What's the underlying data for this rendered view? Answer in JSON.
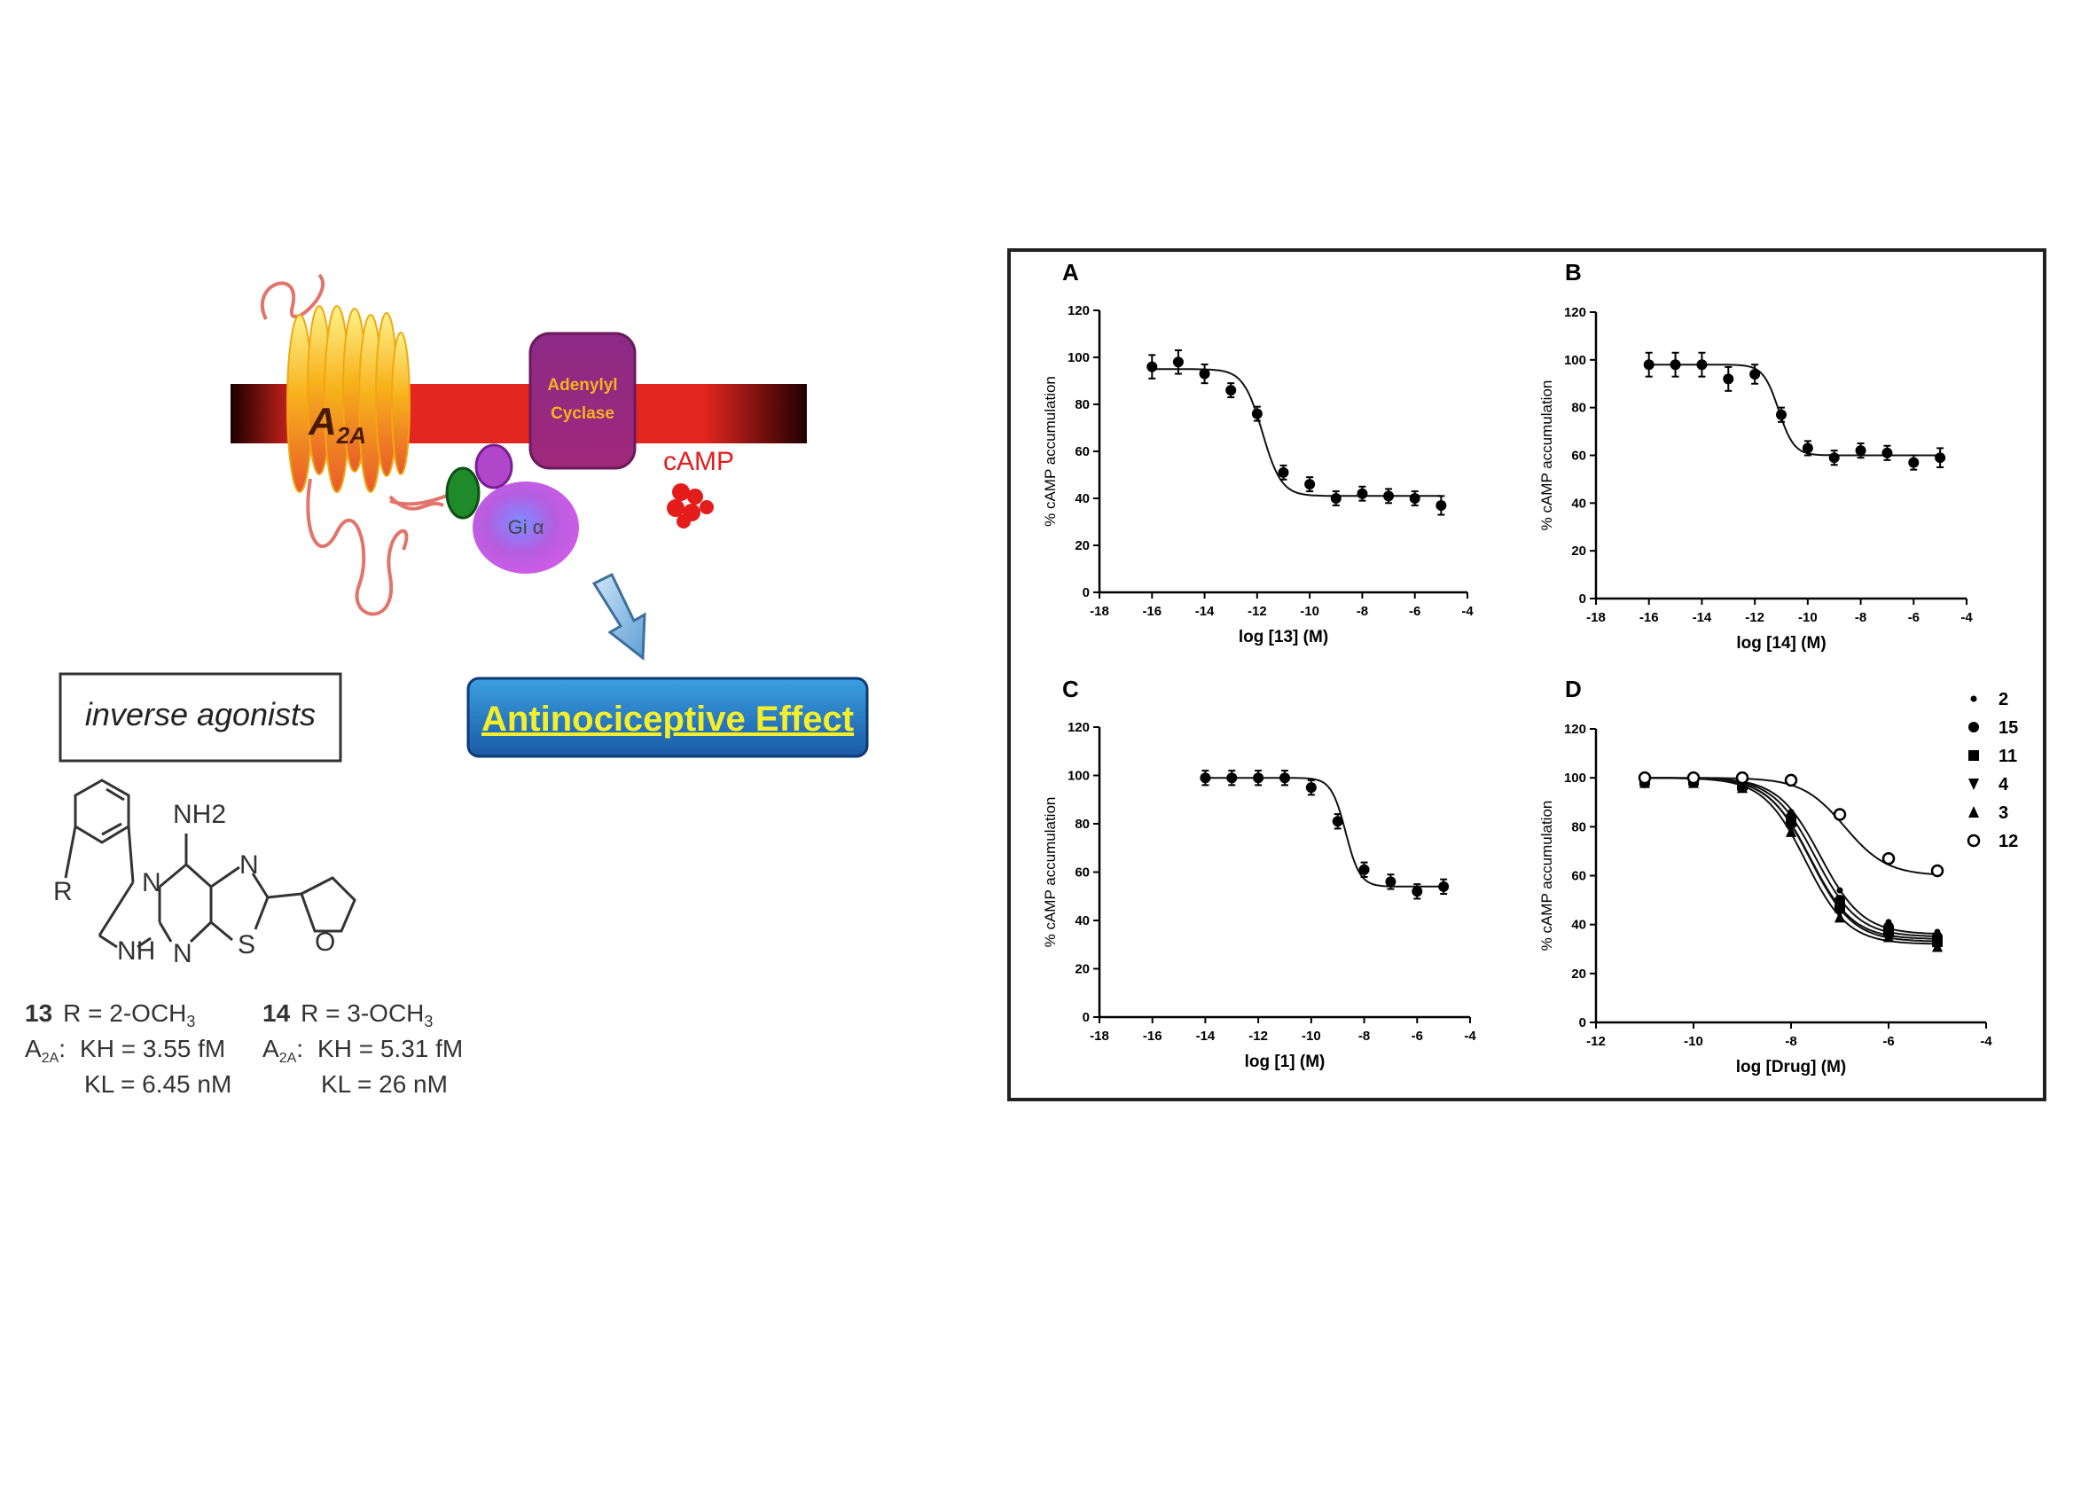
{
  "schematic": {
    "receptor_label": "A",
    "receptor_subscript": "2A",
    "cyclase_line1": "Adenylyl",
    "cyclase_line2": "Cyclase",
    "camp_label": "cAMP",
    "galpha_label": "Gi α",
    "inverse_agonists_label": "inverse agonists",
    "effect_label": "Antinociceptive Effect",
    "colors": {
      "membrane": "#e3261f",
      "receptor": "#f7b21c",
      "cyclase": "#a0287a",
      "galpha": "#b65de0",
      "camp": "#e51c1c",
      "effect_box": "#1f67b0",
      "effect_text": "#f4ef2a"
    }
  },
  "structure": {
    "atoms": {
      "nh2": "NH2",
      "n": "N",
      "r": "R",
      "nh": "NH",
      "s": "S",
      "o": "O"
    },
    "compounds": [
      {
        "num": "13",
        "r": "R = 2-OCH",
        "r_sub": "3",
        "assay": "A",
        "assay_sub": "2A",
        "kh": "KH = 3.55 fM",
        "kl": "KL   = 6.45 nM"
      },
      {
        "num": "14",
        "r": "R = 3-OCH",
        "r_sub": "3",
        "assay": "A",
        "assay_sub": "2A",
        "kh": "KH = 5.31 fM",
        "kl": "KL   = 26 nM"
      }
    ]
  },
  "chart_data": [
    {
      "panel": "A",
      "type": "scatter",
      "xlabel": "log [13] (M)",
      "ylabel": "% cAMP accumulation",
      "xlim": [
        -18,
        -4
      ],
      "ylim": [
        0,
        120
      ],
      "xticks": [
        -18,
        -16,
        -14,
        -12,
        -10,
        -8,
        -6,
        -4
      ],
      "yticks": [
        0,
        20,
        40,
        60,
        80,
        100,
        120
      ],
      "fit": {
        "top": 95,
        "bottom": 41,
        "logIC50": -11.8,
        "hill": 1.2
      },
      "series": [
        {
          "marker": "circle-filled",
          "x": [
            -16,
            -15,
            -14,
            -13,
            -12,
            -11,
            -10,
            -9,
            -8,
            -7,
            -6,
            -5
          ],
          "y": [
            96,
            98,
            93,
            86,
            76,
            51,
            46,
            40,
            42,
            41,
            40,
            37
          ],
          "err": [
            5,
            5,
            4,
            3,
            3,
            3,
            3,
            3,
            3,
            3,
            3,
            4
          ]
        }
      ]
    },
    {
      "panel": "B",
      "type": "scatter",
      "xlabel": "log [14] (M)",
      "ylabel": "% cAMP accumulation",
      "xlim": [
        -18,
        -4
      ],
      "ylim": [
        0,
        120
      ],
      "xticks": [
        -18,
        -16,
        -14,
        -12,
        -10,
        -8,
        -6,
        -4
      ],
      "yticks": [
        0,
        20,
        40,
        60,
        80,
        100,
        120
      ],
      "fit": {
        "top": 98,
        "bottom": 60,
        "logIC50": -11.1,
        "hill": 1.5
      },
      "series": [
        {
          "marker": "circle-filled",
          "x": [
            -16,
            -15,
            -14,
            -13,
            -12,
            -11,
            -10,
            -9,
            -8,
            -7,
            -6,
            -5
          ],
          "y": [
            98,
            98,
            98,
            92,
            94,
            77,
            63,
            59,
            62,
            61,
            57,
            59
          ],
          "err": [
            5,
            5,
            5,
            5,
            4,
            3,
            3,
            3,
            3,
            3,
            3,
            4
          ]
        }
      ]
    },
    {
      "panel": "C",
      "type": "scatter",
      "xlabel": "log [1] (M)",
      "ylabel": "% cAMP accumulation",
      "xlim": [
        -18,
        -4
      ],
      "ylim": [
        0,
        120
      ],
      "xticks": [
        -18,
        -16,
        -14,
        -12,
        -10,
        -8,
        -6,
        -4
      ],
      "yticks": [
        0,
        20,
        40,
        60,
        80,
        100,
        120
      ],
      "fit": {
        "top": 99,
        "bottom": 54,
        "logIC50": -8.7,
        "hill": 1.6
      },
      "series": [
        {
          "marker": "circle-filled",
          "x": [
            -14,
            -13,
            -12,
            -11,
            -10,
            -9,
            -8,
            -7,
            -6,
            -5
          ],
          "y": [
            99,
            99,
            99,
            99,
            95,
            81,
            61,
            56,
            52,
            54
          ],
          "err": [
            3,
            3,
            3,
            3,
            3,
            3,
            3,
            3,
            3,
            3
          ]
        }
      ]
    },
    {
      "panel": "D",
      "type": "scatter",
      "xlabel": "log [Drug] (M)",
      "ylabel": "% cAMP accumulation",
      "xlim": [
        -12,
        -4
      ],
      "ylim": [
        0,
        120
      ],
      "xticks": [
        -12,
        -10,
        -8,
        -6,
        -4
      ],
      "yticks": [
        0,
        20,
        40,
        60,
        80,
        100,
        120
      ],
      "legend_position": "top-right",
      "x": [
        -11,
        -10,
        -9,
        -8,
        -7,
        -6,
        -5
      ],
      "series": [
        {
          "name": "2",
          "marker": "dot-small",
          "fit": {
            "top": 100,
            "bottom": 36,
            "logIC50": -7.4,
            "hill": 1.0
          },
          "y": [
            100,
            100,
            98,
            86,
            54,
            41,
            37
          ]
        },
        {
          "name": "15",
          "marker": "circle-filled",
          "fit": {
            "top": 100,
            "bottom": 35,
            "logIC50": -7.5,
            "hill": 1.0
          },
          "y": [
            99,
            99,
            98,
            84,
            50,
            39,
            35
          ]
        },
        {
          "name": "11",
          "marker": "square-filled",
          "fit": {
            "top": 100,
            "bottom": 34,
            "logIC50": -7.6,
            "hill": 1.0
          },
          "y": [
            99,
            99,
            97,
            82,
            47,
            37,
            33
          ]
        },
        {
          "name": "4",
          "marker": "triangle-down",
          "fit": {
            "top": 100,
            "bottom": 33,
            "logIC50": -7.6,
            "hill": 1.0
          },
          "y": [
            98,
            99,
            97,
            80,
            45,
            36,
            32
          ]
        },
        {
          "name": "3",
          "marker": "triangle-up",
          "fit": {
            "top": 100,
            "bottom": 32,
            "logIC50": -7.7,
            "hill": 1.0
          },
          "y": [
            98,
            98,
            96,
            78,
            43,
            35,
            31
          ]
        },
        {
          "name": "12",
          "marker": "circle-open",
          "fit": {
            "top": 100,
            "bottom": 60,
            "logIC50": -6.9,
            "hill": 1.0
          },
          "y": [
            100,
            100,
            100,
            99,
            85,
            67,
            62
          ]
        }
      ]
    }
  ]
}
